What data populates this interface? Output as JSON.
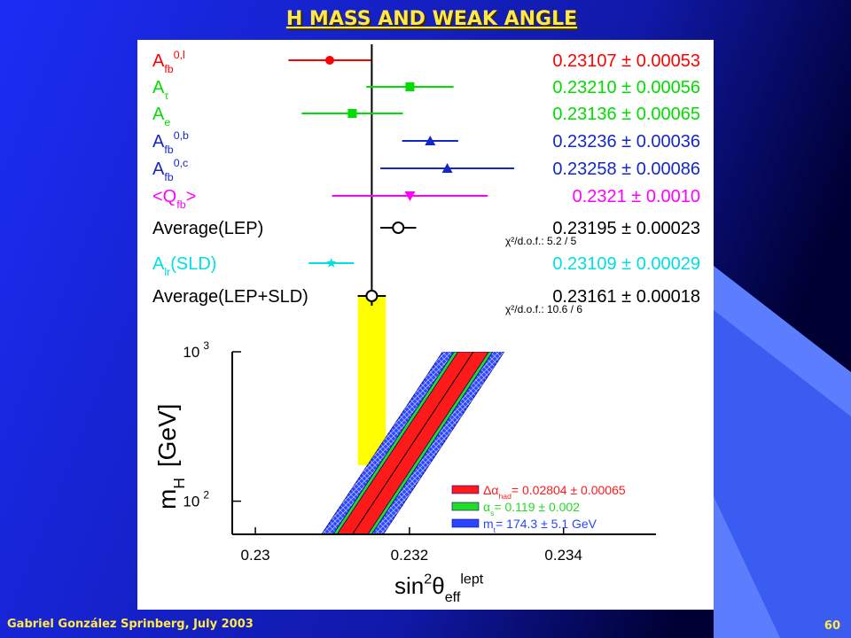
{
  "slide": {
    "title": "H MASS AND WEAK ANGLE",
    "footer": "Gabriel González Sprinberg, July 2003",
    "page": "60"
  },
  "chart_data": [
    {
      "type": "errorbar",
      "xlim": [
        0.2286,
        0.236
      ],
      "labels": [
        [
          {
            "text": "A"
          },
          {
            "text": "fb",
            "pos": "sub"
          },
          {
            "text": "0,l",
            "pos": "sup"
          }
        ],
        [
          {
            "text": "A"
          },
          {
            "text": "τ",
            "pos": "sub"
          }
        ],
        [
          {
            "text": "A"
          },
          {
            "text": "e",
            "pos": "sub"
          }
        ],
        [
          {
            "text": "A"
          },
          {
            "text": "fb",
            "pos": "sub"
          },
          {
            "text": "0,b",
            "pos": "sup"
          }
        ],
        [
          {
            "text": "A"
          },
          {
            "text": "fb",
            "pos": "sub"
          },
          {
            "text": "0,c",
            "pos": "sup"
          }
        ],
        [
          {
            "text": "<Q"
          },
          {
            "text": "fb",
            "pos": "sub"
          },
          {
            "text": ">"
          }
        ],
        [
          {
            "text": "Average(LEP)"
          }
        ],
        [
          {
            "text": "A"
          },
          {
            "text": "lr",
            "pos": "sub"
          },
          {
            "text": "(SLD)"
          }
        ],
        [
          {
            "text": "Average(LEP+SLD)"
          }
        ]
      ],
      "values": [
        0.23107,
        0.2321,
        0.23136,
        0.23236,
        0.23258,
        0.2321,
        0.23195,
        0.23109,
        0.23161
      ],
      "errors": [
        0.00053,
        0.00056,
        0.00065,
        0.00036,
        0.00086,
        0.001,
        0.00023,
        0.00029,
        0.00018
      ],
      "value_labels": [
        "0.23107 ± 0.00053",
        "0.23210 ± 0.00056",
        "0.23136 ± 0.00065",
        "0.23236 ± 0.00036",
        "0.23258 ± 0.00086",
        "0.2321 ± 0.0010",
        "0.23195 ± 0.00023",
        "0.23109 ± 0.00029",
        "0.23161 ± 0.00018"
      ],
      "colors": [
        "#ff0000",
        "#00dd00",
        "#00dd00",
        "#1428c8",
        "#1428c8",
        "#ff00ff",
        "#000000",
        "#00e0e0",
        "#000000"
      ],
      "markers": [
        "circle",
        "square",
        "square",
        "triangle-up",
        "triangle-up",
        "triangle-down",
        "open-circle",
        "star",
        "open-circle"
      ],
      "notes": [
        null,
        null,
        null,
        null,
        null,
        null,
        "χ²/d.o.f.: 5.2 / 5",
        null,
        "χ²/d.o.f.: 10.6 / 6"
      ],
      "band_color": "#ffff00"
    },
    {
      "type": "band",
      "xlim": [
        0.2297,
        0.2352
      ],
      "xticks": [
        0.23,
        0.232,
        0.234
      ],
      "ylim": [
        60,
        1000
      ],
      "log_y": true,
      "yticks": [
        {
          "value": 1000,
          "label": "10",
          "exponent": "3"
        },
        {
          "value": 100,
          "label": "10",
          "exponent": "2"
        }
      ],
      "xlabel": [
        {
          "text": "sin"
        },
        {
          "text": "2",
          "pos": "sup"
        },
        {
          "text": "θ"
        },
        {
          "text": "eff",
          "pos": "sub"
        },
        {
          "text": "lept",
          "pos": "sup"
        }
      ],
      "ylabel": [
        {
          "text": "m"
        },
        {
          "text": "H",
          "pos": "sub"
        },
        {
          "text": "[GeV]"
        }
      ],
      "mh": [
        60,
        1000
      ],
      "center": [
        0.23126,
        0.23283
      ],
      "series": [
        {
          "label": [
            {
              "text": "Δα"
            },
            {
              "text": "had",
              "pos": "sub"
            },
            {
              "text": "= 0.02804 ± 0.00065"
            }
          ],
          "color": "#ff1a1a",
          "x_low": [
            0.23106,
            0.23263
          ],
          "x_high": [
            0.23146,
            0.23303
          ]
        },
        {
          "label": [
            {
              "text": "α"
            },
            {
              "text": "s",
              "pos": "sub"
            },
            {
              "text": "= 0.119 ± 0.002"
            }
          ],
          "color": "#22dd22",
          "x_low": [
            0.23101,
            0.23258
          ],
          "x_high": [
            0.23151,
            0.23308
          ]
        },
        {
          "label": [
            {
              "text": "m"
            },
            {
              "text": "t",
              "pos": "sub"
            },
            {
              "text": "= 174.3 ± 5.1 GeV"
            }
          ],
          "color": "#2a45ff",
          "x_low": [
            0.23086,
            0.23243
          ],
          "x_high": [
            0.23166,
            0.23323
          ]
        }
      ]
    }
  ]
}
